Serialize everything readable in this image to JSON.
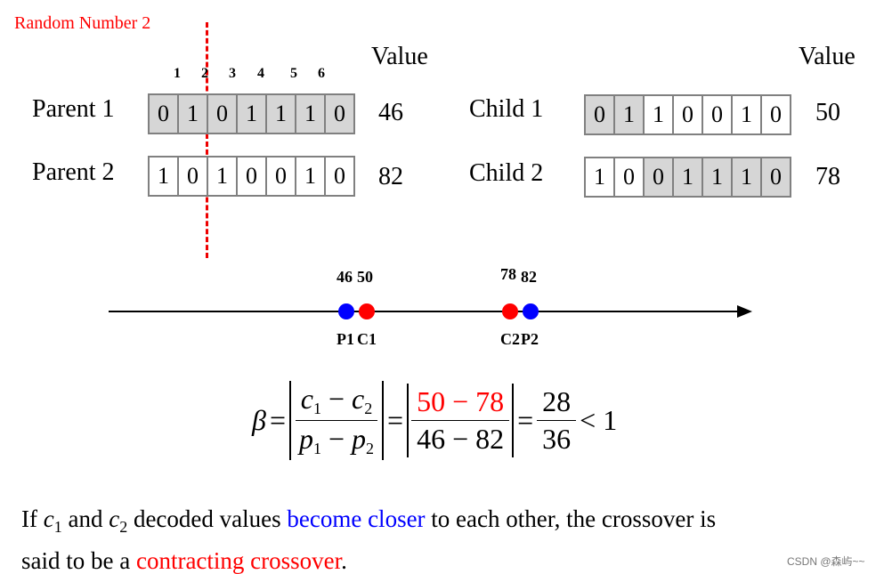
{
  "colors": {
    "accent_red": "#ff0000",
    "accent_blue": "#0000ff",
    "shaded_cell": "#d6d6d6",
    "cell_border": "#808080"
  },
  "random_number_label": "Random Number 2",
  "cut_position": 2,
  "value_header_left": "Value",
  "value_header_right": "Value",
  "bit_indices": [
    "1",
    "2",
    "3",
    "4",
    "5",
    "6"
  ],
  "parents": [
    {
      "label": "Parent 1",
      "bits": [
        "0",
        "1",
        "0",
        "1",
        "1",
        "1",
        "0"
      ],
      "shaded": [
        true,
        true,
        true,
        true,
        true,
        true,
        true
      ],
      "value": "46"
    },
    {
      "label": "Parent 2",
      "bits": [
        "1",
        "0",
        "1",
        "0",
        "0",
        "1",
        "0"
      ],
      "shaded": [
        false,
        false,
        false,
        false,
        false,
        false,
        false
      ],
      "value": "82"
    }
  ],
  "children": [
    {
      "label": "Child 1",
      "bits": [
        "0",
        "1",
        "1",
        "0",
        "0",
        "1",
        "0"
      ],
      "shaded": [
        true,
        true,
        false,
        false,
        false,
        false,
        false
      ],
      "value": "50"
    },
    {
      "label": "Child 2",
      "bits": [
        "1",
        "0",
        "0",
        "1",
        "1",
        "1",
        "0"
      ],
      "shaded": [
        false,
        false,
        true,
        true,
        true,
        true,
        true
      ],
      "value": "78"
    }
  ],
  "number_line": {
    "points": [
      {
        "value": "46",
        "label": "P1",
        "color": "#0000ff"
      },
      {
        "value": "50",
        "label": "C1",
        "color": "#ff0000"
      },
      {
        "value": "78",
        "label": "C2",
        "color": "#ff0000"
      },
      {
        "value": "82",
        "label": "P2",
        "color": "#0000ff"
      }
    ]
  },
  "equation": {
    "beta": "β",
    "eq": "=",
    "c1": "c",
    "c1_sub": "1",
    "minus": "−",
    "c2": "c",
    "c2_sub": "2",
    "p1": "p",
    "p1_sub": "1",
    "p2": "p",
    "p2_sub": "2",
    "num_values": "50 − 78",
    "den_values": "46 − 82",
    "result_num": "28",
    "result_den": "36",
    "comparison": "< 1"
  },
  "paragraph": {
    "t1": "If ",
    "c1": "c",
    "c1_sub": "1",
    "t2": " and ",
    "c2": "c",
    "c2_sub": "2",
    "t3": " decoded values ",
    "blue": "become closer",
    "t4": " to each other, the crossover is",
    "t5": "said to be a ",
    "red": "contracting crossover",
    "t6": "."
  },
  "watermark": "CSDN @森屿~~"
}
